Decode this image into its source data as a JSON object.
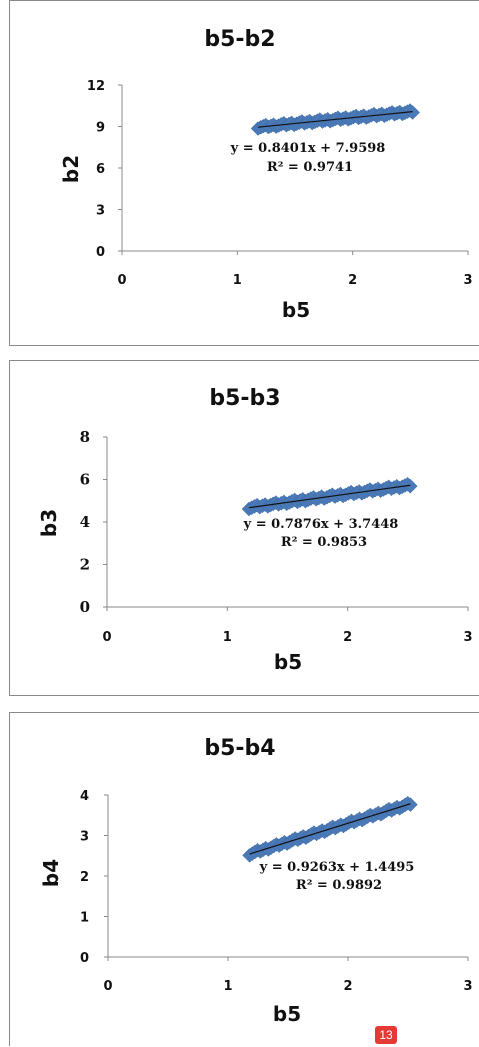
{
  "chart_data": [
    {
      "type": "scatter",
      "title": "b5-b2",
      "xlabel": "b5",
      "ylabel": "b2",
      "xlim": [
        0,
        3
      ],
      "ylim": [
        0,
        12
      ],
      "xticks": [
        "0",
        "1",
        "2",
        "3"
      ],
      "yticks": [
        "0",
        "3",
        "6",
        "9",
        "12"
      ],
      "x_range": [
        1.18,
        2.52
      ],
      "trendline": {
        "slope": 0.8401,
        "intercept": 7.9598
      },
      "equation": "y = 0.8401x + 7.9598",
      "r2": "R² = 0.9741",
      "marker_color": "#4a7ab8"
    },
    {
      "type": "scatter",
      "title": "b5-b3",
      "xlabel": "b5",
      "ylabel": "b3",
      "xlim": [
        0,
        3
      ],
      "ylim": [
        0,
        8
      ],
      "xticks": [
        "0",
        "1",
        "2",
        "3"
      ],
      "yticks": [
        "0",
        "2",
        "4",
        "6",
        "8"
      ],
      "x_range": [
        1.18,
        2.52
      ],
      "trendline": {
        "slope": 0.7876,
        "intercept": 3.7448
      },
      "equation": "y = 0.7876x + 3.7448",
      "r2": "R² = 0.9853",
      "marker_color": "#4a7ab8"
    },
    {
      "type": "scatter",
      "title": "b5-b4",
      "xlabel": "b5",
      "ylabel": "b4",
      "xlim": [
        0,
        3
      ],
      "ylim": [
        0,
        4
      ],
      "xticks": [
        "0",
        "1",
        "2",
        "3"
      ],
      "yticks": [
        "0",
        "1",
        "2",
        "3",
        "4"
      ],
      "x_range": [
        1.18,
        2.52
      ],
      "trendline": {
        "slope": 0.9263,
        "intercept": 1.4495
      },
      "equation": "y = 0.9263x + 1.4495",
      "r2": "R² = 0.9892",
      "marker_color": "#4a7ab8"
    }
  ],
  "page_number": "13"
}
